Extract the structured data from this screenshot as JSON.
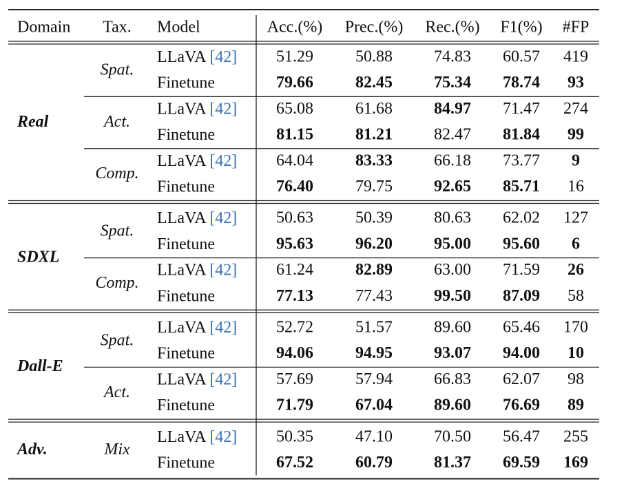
{
  "table": {
    "header": [
      "Domain",
      "Tax.",
      "Model",
      "Acc.(%)",
      "Prec.(%)",
      "Rec.(%)",
      "F1(%)",
      "#FP"
    ],
    "groups": [
      {
        "domain": "Real",
        "subgroups": [
          {
            "tax": "Spat.",
            "rows": [
              {
                "model": "LLaVA",
                "ref": "[42]",
                "values": [
                  "51.29",
                  "50.88",
                  "74.83",
                  "60.57",
                  "419"
                ],
                "bold": []
              },
              {
                "model": "Finetune",
                "values": [
                  "79.66",
                  "82.45",
                  "75.34",
                  "78.74",
                  "93"
                ],
                "bold": [
                  0,
                  1,
                  2,
                  3,
                  4
                ]
              }
            ]
          },
          {
            "tax": "Act.",
            "rows": [
              {
                "model": "LLaVA",
                "ref": "[42]",
                "values": [
                  "65.08",
                  "61.68",
                  "84.97",
                  "71.47",
                  "274"
                ],
                "bold": [
                  2
                ]
              },
              {
                "model": "Finetune",
                "values": [
                  "81.15",
                  "81.21",
                  "82.47",
                  "81.84",
                  "99"
                ],
                "bold": [
                  0,
                  1,
                  3,
                  4
                ]
              }
            ]
          },
          {
            "tax": "Comp.",
            "rows": [
              {
                "model": "LLaVA",
                "ref": "[42]",
                "values": [
                  "64.04",
                  "83.33",
                  "66.18",
                  "73.77",
                  "9"
                ],
                "bold": [
                  1,
                  4
                ]
              },
              {
                "model": "Finetune",
                "values": [
                  "76.40",
                  "79.75",
                  "92.65",
                  "85.71",
                  "16"
                ],
                "bold": [
                  0,
                  2,
                  3
                ]
              }
            ]
          }
        ]
      },
      {
        "domain": "SDXL",
        "subgroups": [
          {
            "tax": "Spat.",
            "rows": [
              {
                "model": "LLaVA",
                "ref": "[42]",
                "values": [
                  "50.63",
                  "50.39",
                  "80.63",
                  "62.02",
                  "127"
                ],
                "bold": []
              },
              {
                "model": "Finetune",
                "values": [
                  "95.63",
                  "96.20",
                  "95.00",
                  "95.60",
                  "6"
                ],
                "bold": [
                  0,
                  1,
                  2,
                  3,
                  4
                ]
              }
            ]
          },
          {
            "tax": "Comp.",
            "rows": [
              {
                "model": "LLaVA",
                "ref": "[42]",
                "values": [
                  "61.24",
                  "82.89",
                  "63.00",
                  "71.59",
                  "26"
                ],
                "bold": [
                  1,
                  4
                ]
              },
              {
                "model": "Finetune",
                "values": [
                  "77.13",
                  "77.43",
                  "99.50",
                  "87.09",
                  "58"
                ],
                "bold": [
                  0,
                  2,
                  3
                ]
              }
            ]
          }
        ]
      },
      {
        "domain": "Dall-E",
        "subgroups": [
          {
            "tax": "Spat.",
            "rows": [
              {
                "model": "LLaVA",
                "ref": "[42]",
                "values": [
                  "52.72",
                  "51.57",
                  "89.60",
                  "65.46",
                  "170"
                ],
                "bold": []
              },
              {
                "model": "Finetune",
                "values": [
                  "94.06",
                  "94.95",
                  "93.07",
                  "94.00",
                  "10"
                ],
                "bold": [
                  0,
                  1,
                  2,
                  3,
                  4
                ]
              }
            ]
          },
          {
            "tax": "Act.",
            "rows": [
              {
                "model": "LLaVA",
                "ref": "[42]",
                "values": [
                  "57.69",
                  "57.94",
                  "66.83",
                  "62.07",
                  "98"
                ],
                "bold": []
              },
              {
                "model": "Finetune",
                "values": [
                  "71.79",
                  "67.04",
                  "89.60",
                  "76.69",
                  "89"
                ],
                "bold": [
                  0,
                  1,
                  2,
                  3,
                  4
                ]
              }
            ]
          }
        ]
      },
      {
        "domain": "Adv.",
        "subgroups": [
          {
            "tax": "Mix",
            "rows": [
              {
                "model": "LLaVA",
                "ref": "[42]",
                "values": [
                  "50.35",
                  "47.10",
                  "70.50",
                  "56.47",
                  "255"
                ],
                "bold": []
              },
              {
                "model": "Finetune",
                "values": [
                  "67.52",
                  "60.79",
                  "81.37",
                  "69.59",
                  "169"
                ],
                "bold": [
                  0,
                  1,
                  2,
                  3,
                  4
                ]
              }
            ]
          }
        ]
      }
    ]
  }
}
